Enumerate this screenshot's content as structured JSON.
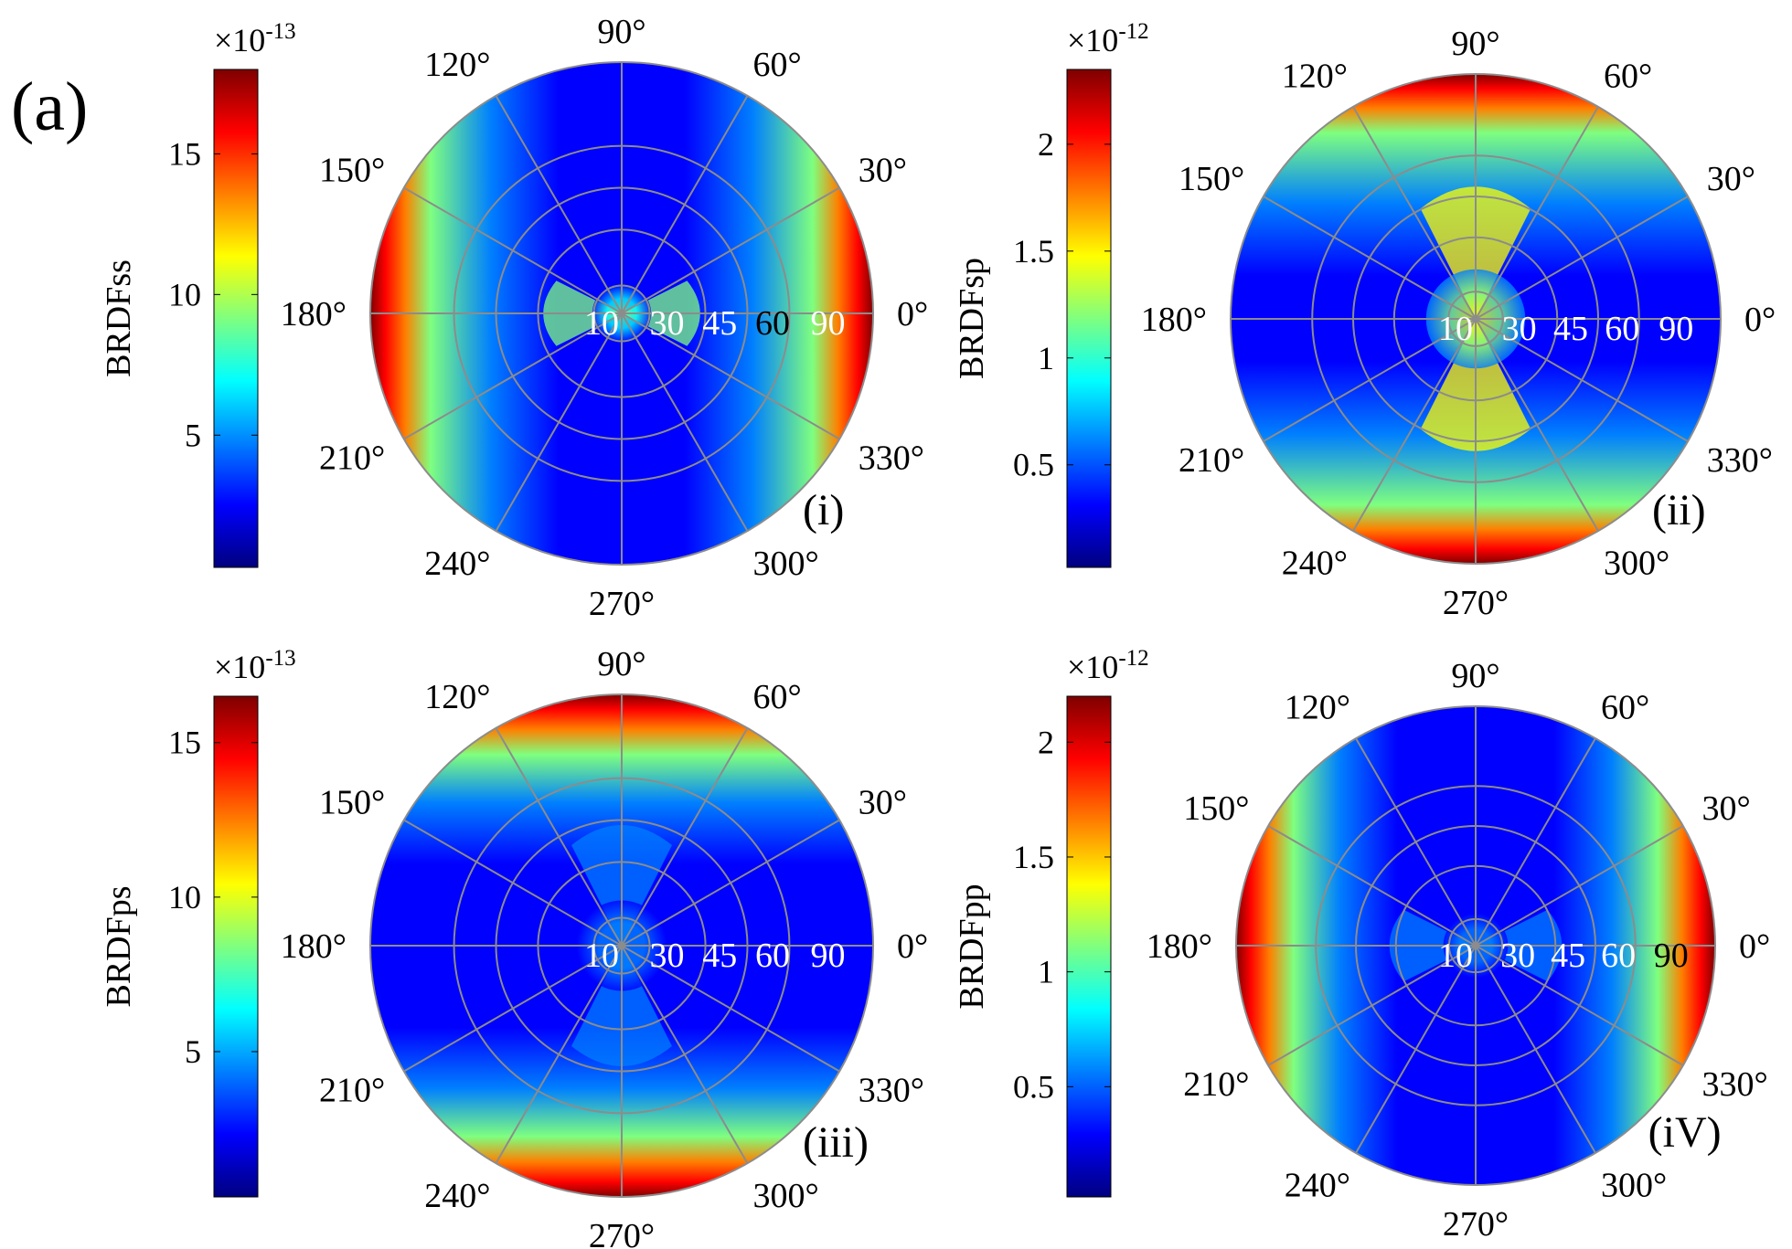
{
  "figure_label": "(a)",
  "colormap": {
    "name": "jet",
    "stops": [
      "#00007f",
      "#0000ff",
      "#007fff",
      "#00ffff",
      "#7fff7f",
      "#ffff00",
      "#ff7f00",
      "#ff0000",
      "#7f0000"
    ]
  },
  "grid_color": "#8c8c8c",
  "chart_data": [
    {
      "type": "heatmap",
      "subtype": "polar",
      "panel_label": "(i)",
      "colorbar": {
        "label": "BRDFss",
        "exponent_text": "×10",
        "exponent_power": "-13",
        "range": [
          0.3,
          18
        ],
        "ticks": [
          {
            "value": 5,
            "label": "5"
          },
          {
            "value": 10,
            "label": "10"
          },
          {
            "value": 15,
            "label": "15"
          }
        ]
      },
      "angular_ticks": [
        "0°",
        "30°",
        "60°",
        "90°",
        "120°",
        "150°",
        "180°",
        "210°",
        "240°",
        "270°",
        "300°",
        "330°"
      ],
      "radial_ticks": [
        "10",
        "30",
        "45",
        "60",
        "90"
      ],
      "radial_label_colors": [
        "#ffffff",
        "#ffffff",
        "#ffffff",
        "#000000",
        "#ffffff"
      ],
      "pattern": {
        "ring": "x",
        "center": 0.45,
        "center_width": 0.26,
        "edge": 1.0,
        "edge_start": 0.5
      }
    },
    {
      "type": "heatmap",
      "subtype": "polar",
      "panel_label": "(ii)",
      "colorbar": {
        "label": "BRDFsp",
        "exponent_text": "×10",
        "exponent_power": "-12",
        "range": [
          0.02,
          2.35
        ],
        "ticks": [
          {
            "value": 0.5,
            "label": "0.5"
          },
          {
            "value": 1,
            "label": "1"
          },
          {
            "value": 1.5,
            "label": "1.5"
          },
          {
            "value": 2,
            "label": "2"
          }
        ]
      },
      "angular_ticks": [
        "0°",
        "30°",
        "60°",
        "90°",
        "120°",
        "150°",
        "180°",
        "210°",
        "240°",
        "270°",
        "300°",
        "330°"
      ],
      "radial_ticks": [
        "10",
        "30",
        "45",
        "60",
        "90"
      ],
      "radial_label_colors": [
        "#ffffff",
        "#ffffff",
        "#ffffff",
        "#ffffff",
        "#ffffff"
      ],
      "pattern": {
        "ring": "y",
        "center": 0.6,
        "center_width": 0.45,
        "edge": 1.0,
        "edge_start": 0.45
      }
    },
    {
      "type": "heatmap",
      "subtype": "polar",
      "panel_label": "(iii)",
      "colorbar": {
        "label": "BRDFps",
        "exponent_text": "×10",
        "exponent_power": "-13",
        "range": [
          0.3,
          16.5
        ],
        "ticks": [
          {
            "value": 5,
            "label": "5"
          },
          {
            "value": 10,
            "label": "10"
          },
          {
            "value": 15,
            "label": "15"
          }
        ]
      },
      "angular_ticks": [
        "0°",
        "30°",
        "60°",
        "90°",
        "120°",
        "150°",
        "180°",
        "210°",
        "240°",
        "270°",
        "300°",
        "330°"
      ],
      "radial_ticks": [
        "10",
        "30",
        "45",
        "60",
        "90"
      ],
      "radial_label_colors": [
        "#ffffff",
        "#ffffff",
        "#ffffff",
        "#ffffff",
        "#ffffff"
      ],
      "pattern": {
        "ring": "y",
        "center": 0.3,
        "center_width": 0.4,
        "edge": 1.0,
        "edge_start": 0.55
      }
    },
    {
      "type": "heatmap",
      "subtype": "polar",
      "panel_label": "(iV)",
      "colorbar": {
        "label": "BRDFpp",
        "exponent_text": "×10",
        "exponent_power": "-12",
        "range": [
          0.02,
          2.2
        ],
        "ticks": [
          {
            "value": 0.5,
            "label": "0.5"
          },
          {
            "value": 1,
            "label": "1"
          },
          {
            "value": 1.5,
            "label": "1.5"
          },
          {
            "value": 2,
            "label": "2"
          }
        ]
      },
      "angular_ticks": [
        "0°",
        "30°",
        "60°",
        "90°",
        "120°",
        "150°",
        "180°",
        "210°",
        "240°",
        "270°",
        "300°",
        "330°"
      ],
      "radial_ticks": [
        "10",
        "30",
        "45",
        "60",
        "90"
      ],
      "radial_label_colors": [
        "#ffffff",
        "#ffffff",
        "#ffffff",
        "#ffffff",
        "#000000"
      ],
      "pattern": {
        "ring": "x",
        "center": 0.3,
        "center_width": 0.3,
        "edge": 1.0,
        "edge_start": 0.55
      }
    }
  ]
}
